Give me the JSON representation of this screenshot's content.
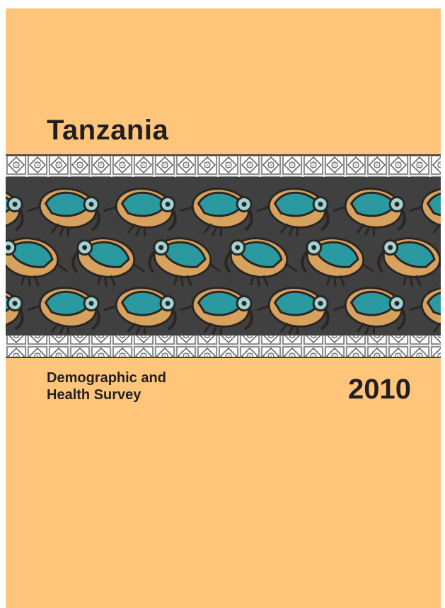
{
  "cover": {
    "title": "Tanzania",
    "subtitle_line1": "Demographic and",
    "subtitle_line2": "Health Survey",
    "year": "2010"
  },
  "pattern": {
    "motif": "stylized-bird-icon",
    "colors": {
      "background": "#fec57b",
      "band": "#404041",
      "border": "#d9d9d9",
      "bird_body": "#2a9aa0",
      "bird_wing": "#d6a25e",
      "outline": "#2b2623"
    }
  }
}
